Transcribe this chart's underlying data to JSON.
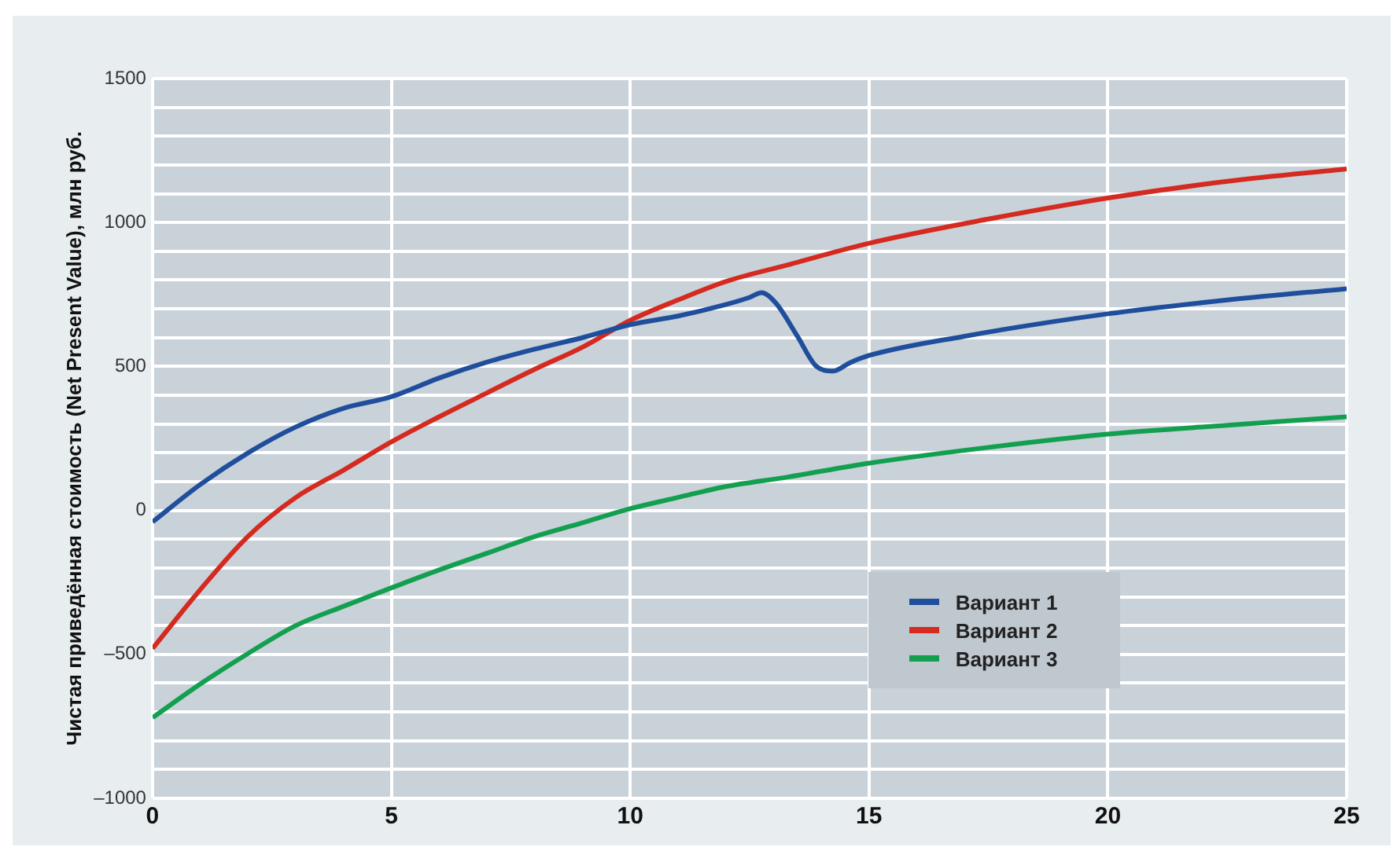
{
  "chart_data": {
    "type": "line",
    "ylabel": "Чистая приведённая стоимость (Net Present Value), млн руб.",
    "xlim": [
      0,
      25
    ],
    "xticks": [
      0,
      5,
      10,
      15,
      20,
      25
    ],
    "ylim": [
      -1000,
      1500
    ],
    "yticks": [
      {
        "value": -1000,
        "label": "–1000"
      },
      {
        "value": -900,
        "label": null
      },
      {
        "value": -800,
        "label": null
      },
      {
        "value": -700,
        "label": null
      },
      {
        "value": -600,
        "label": null
      },
      {
        "value": -500,
        "label": "–500"
      },
      {
        "value": -400,
        "label": null
      },
      {
        "value": -300,
        "label": null
      },
      {
        "value": -200,
        "label": null
      },
      {
        "value": -100,
        "label": null
      },
      0,
      {
        "value": 100,
        "label": null
      },
      {
        "value": 200,
        "label": null
      },
      {
        "value": 300,
        "label": null
      },
      {
        "value": 400,
        "label": null
      },
      500,
      {
        "value": 600,
        "label": null
      },
      {
        "value": 700,
        "label": null
      },
      {
        "value": 800,
        "label": null
      },
      {
        "value": 900,
        "label": null
      },
      1000,
      {
        "value": 1100,
        "label": null
      },
      {
        "value": 1200,
        "label": null
      },
      {
        "value": 1300,
        "label": null
      },
      {
        "value": 1400,
        "label": null
      },
      1500
    ],
    "grid": true,
    "legend": "bottom",
    "marker": "none",
    "line_style": "solid",
    "series": [
      {
        "name": "Вариант 1",
        "color": "#1f4e9c",
        "x": [
          0,
          1,
          2,
          3,
          4,
          5,
          6,
          7,
          8,
          9,
          10,
          11,
          12,
          12.5,
          12.75,
          13.05,
          13.5,
          13.9,
          14.25,
          14.6,
          15,
          17,
          20,
          22.5,
          25
        ],
        "values": [
          -40,
          90,
          200,
          290,
          355,
          395,
          460,
          515,
          560,
          600,
          645,
          675,
          715,
          740,
          756,
          720,
          605,
          500,
          484,
          513,
          538,
          605,
          683,
          731,
          770
        ]
      },
      {
        "name": "Вариант 2",
        "color": "#d42a1f",
        "x": [
          0,
          1,
          2,
          3,
          4,
          5,
          6,
          7,
          8,
          9,
          10,
          11,
          12,
          13.3,
          15,
          17.5,
          20,
          22.5,
          25
        ],
        "values": [
          -480,
          -275,
          -90,
          45,
          140,
          238,
          325,
          408,
          490,
          567,
          660,
          731,
          795,
          853,
          928,
          1012,
          1085,
          1143,
          1186
        ]
      },
      {
        "name": "Вариант 3",
        "color": "#12a050",
        "x": [
          0,
          1,
          2,
          3,
          4,
          5,
          6,
          7,
          8,
          9,
          10,
          11,
          12,
          13.3,
          15,
          17.5,
          20,
          22.5,
          25
        ],
        "values": [
          -720,
          -603,
          -497,
          -400,
          -333,
          -269,
          -207,
          -149,
          -91,
          -43,
          6,
          45,
          83,
          116,
          164,
          219,
          265,
          296,
          325
        ]
      }
    ]
  }
}
